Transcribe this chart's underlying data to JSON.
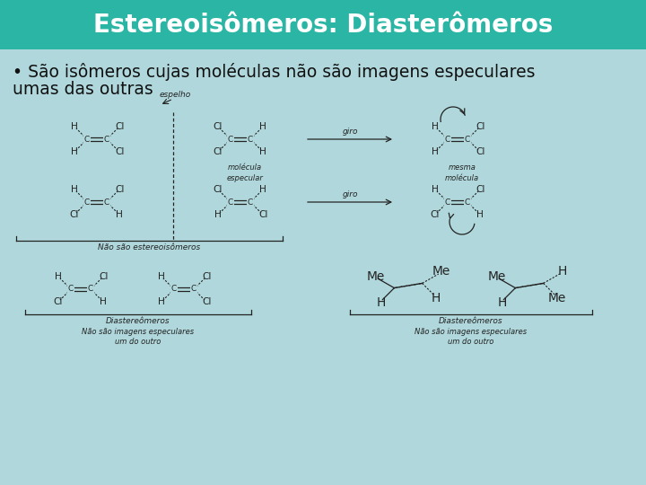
{
  "title": "Estereoisômeros: Diasterômeros",
  "title_bg_color": "#2ab5a5",
  "title_text_color": "#ffffff",
  "body_bg_color": "#b0d8dc",
  "bullet_text_line1": "• São isômeros cujas moléculas não são imagens especulares",
  "bullet_text_line2": "umas das outras",
  "title_fontsize": 20,
  "bullet_fontsize": 13.5,
  "fig_width": 7.2,
  "fig_height": 5.4,
  "dpi": 100,
  "title_bar_height": 55,
  "mol_color": "#222222",
  "label_color": "#222222"
}
